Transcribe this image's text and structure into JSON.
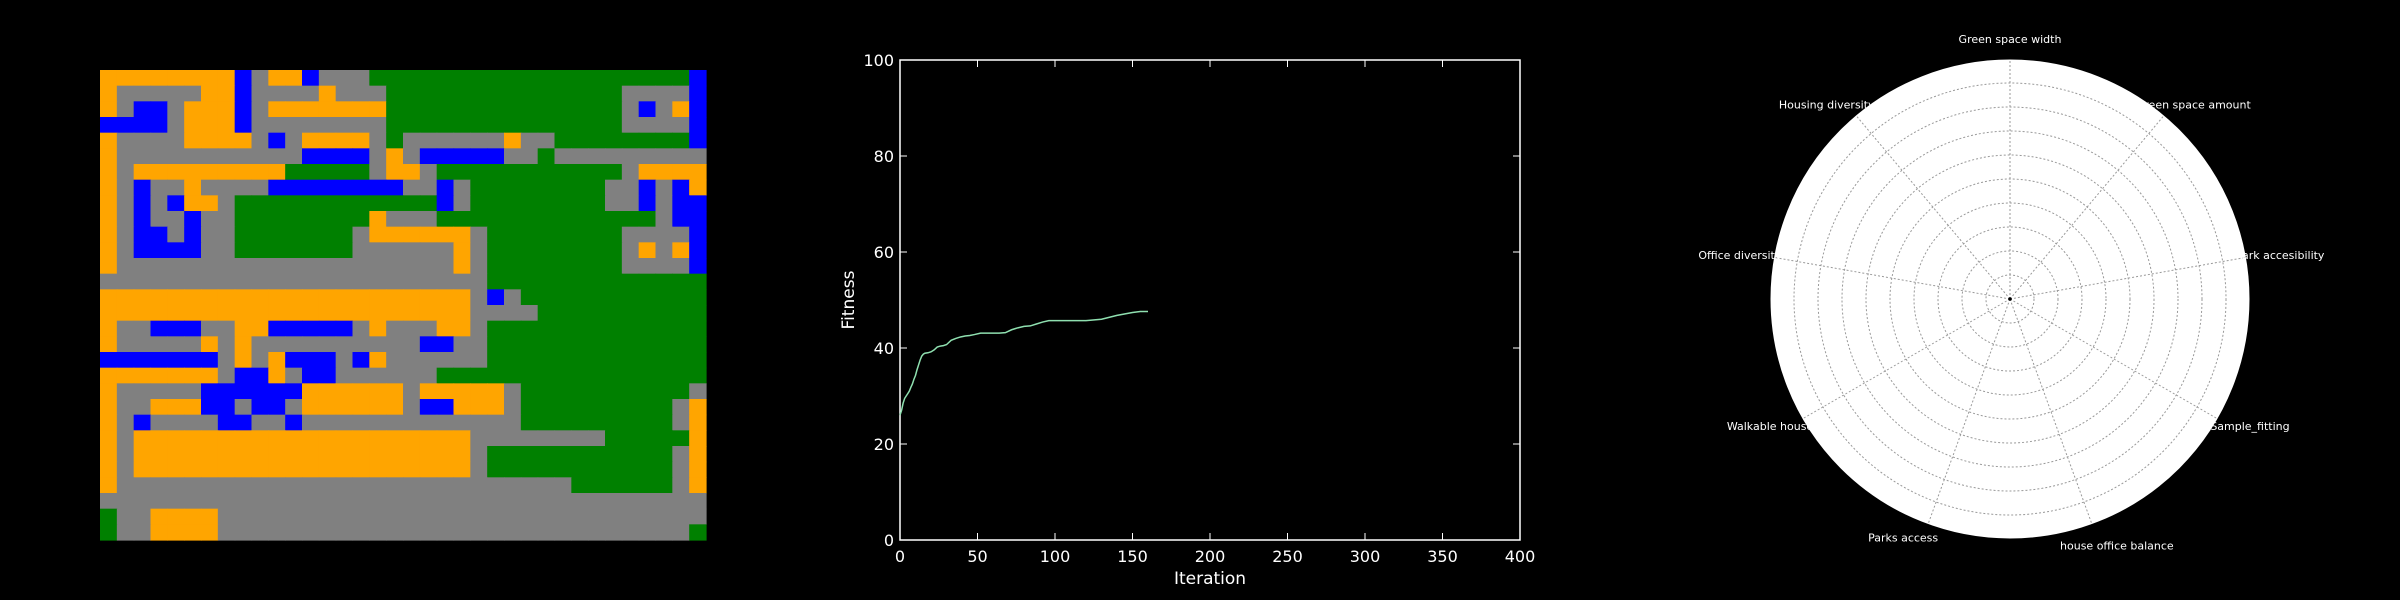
{
  "colors": {
    "background": "#000000",
    "road": "#808080",
    "housing": "#FFA500",
    "office": "#0000FF",
    "park": "#008000",
    "line": "#8fe0b0",
    "axis": "#ffffff",
    "radar_face": "#ffffff",
    "radar_grid": "#999999"
  },
  "grid_map": {
    "legend": {
      "0": "road",
      "1": "housing",
      "2": "office",
      "3": "park"
    },
    "rows": [
      "111111112011200033333333333333333332",
      "100000112000010003333333333333300002",
      "102201112011111113333333333333302012",
      "222201112000000003333333333333300002",
      "100001111020111103000000100333333332",
      "100000000000222201022222003000000000",
      "101111111113333301103333333333301111",
      "102001000022222222002033333333002021",
      "102021103333333333332033333333002022",
      "102002003333333310003333333333333022",
      "102202003333333011111103333333300002",
      "102222003333333000000103333333301012",
      "100000000000000000000103333333300002",
      "000000000000000000000003333333333333",
      "111111111111111111111102033333333333",
      "111111111111111111111100003333333333",
      "100222001122222010001103333333333333",
      "100000101000000000022003333333333333",
      "222222201012220210000003333333333333",
      "111111102210220000003333333333333333",
      "100000222222111111011111033333333330",
      "100111220220111111022111033333333301",
      "102000022002000000000000033333333301",
      "101111111111111111111100000000333331",
      "101111111111111111111103333333333301",
      "101111111111111111111103333333333301",
      "100000000000000000000000000033333301",
      "000000000000000000000000000000000000",
      "300111100000000000000000000000000000",
      "300111100000000000000000000000000003"
    ]
  },
  "chart_data": [
    {
      "type": "line",
      "title": "",
      "xlabel": "Iteration",
      "ylabel": "Fitness",
      "xlim": [
        0,
        400
      ],
      "ylim": [
        0,
        100
      ],
      "xticks": [
        0,
        50,
        100,
        150,
        200,
        250,
        300,
        350,
        400
      ],
      "yticks": [
        0,
        20,
        40,
        60,
        80,
        100
      ],
      "series": [
        {
          "x": [
            0,
            1,
            2,
            3,
            4,
            5,
            6,
            7,
            8,
            9,
            10,
            11,
            12,
            13,
            14,
            15,
            16,
            18,
            20,
            22,
            24,
            26,
            28,
            30,
            33,
            36,
            39,
            42,
            45,
            48,
            52,
            56,
            60,
            64,
            68,
            72,
            76,
            80,
            84,
            88,
            92,
            96,
            100,
            110,
            120,
            130,
            140,
            150,
            155,
            160
          ],
          "y": [
            26,
            27,
            28.5,
            29.5,
            30,
            30.5,
            31,
            31.8,
            32.5,
            33.5,
            34.3,
            35.5,
            36.5,
            37.5,
            38.3,
            38.7,
            38.9,
            39.0,
            39.2,
            39.6,
            40.2,
            40.4,
            40.5,
            40.7,
            41.6,
            42.0,
            42.3,
            42.5,
            42.6,
            42.8,
            43.1,
            43.1,
            43.1,
            43.1,
            43.2,
            43.8,
            44.2,
            44.5,
            44.6,
            45.0,
            45.4,
            45.7,
            45.7,
            45.7,
            45.7,
            46.0,
            46.8,
            47.4,
            47.6,
            47.6
          ]
        }
      ]
    },
    {
      "type": "radar",
      "axes": [
        "Green space width",
        "Green space amount",
        "Park accesibility",
        "Sample_fitting",
        "house office balance",
        "Parks access",
        "Walkable house",
        "Office diversity",
        "Housing diversity"
      ],
      "rgrid_levels": 10,
      "values": [
        0,
        0,
        0,
        0,
        0,
        0,
        0,
        0,
        0
      ]
    }
  ]
}
